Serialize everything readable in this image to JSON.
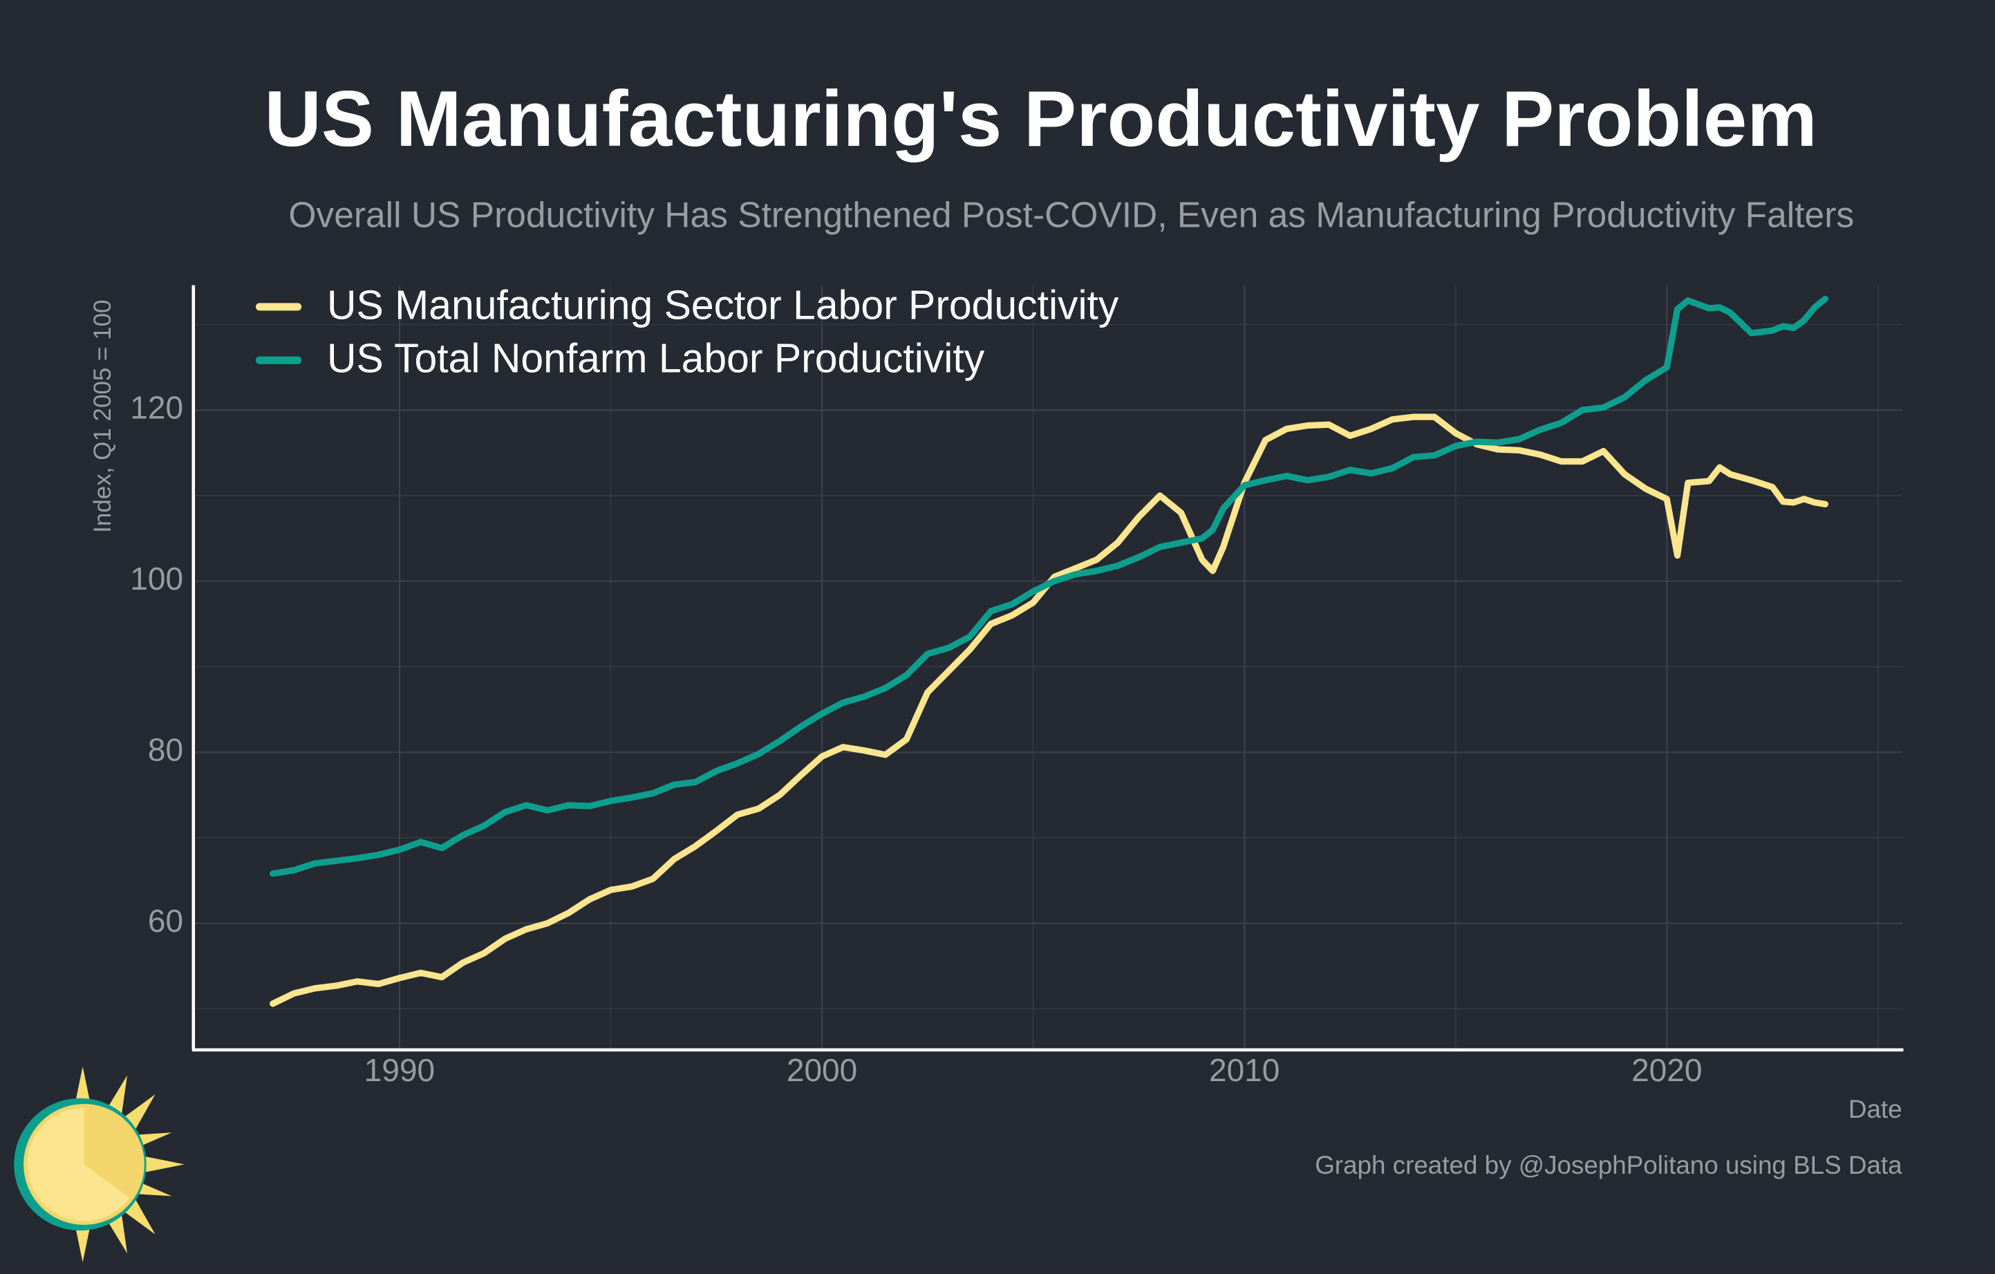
{
  "chart_data": {
    "type": "line",
    "title": "US Manufacturing's Productivity Problem",
    "subtitle": "Overall US Productivity Has Strengthened Post-COVID, Even as Manufacturing Productivity Falters",
    "y_label": "Index, Q1 2005 = 100",
    "x_label": "Date",
    "caption": "Graph created by @JosephPolitano using BLS Data",
    "x": [
      1987,
      1987.5,
      1988,
      1988.5,
      1989,
      1989.5,
      1990,
      1990.5,
      1991,
      1991.5,
      1992,
      1992.5,
      1993,
      1993.5,
      1994,
      1994.5,
      1995,
      1995.5,
      1996,
      1996.5,
      1997,
      1997.5,
      1998,
      1998.5,
      1999,
      1999.5,
      2000,
      2000.5,
      2001,
      2001.5,
      2002,
      2002.5,
      2003,
      2003.5,
      2004,
      2004.5,
      2005,
      2005.5,
      2006,
      2006.5,
      2007,
      2007.5,
      2008,
      2008.5,
      2009,
      2009.25,
      2009.5,
      2010,
      2010.5,
      2011,
      2011.5,
      2012,
      2012.5,
      2013,
      2013.5,
      2014,
      2014.5,
      2015,
      2015.5,
      2016,
      2016.5,
      2017,
      2017.5,
      2018,
      2018.5,
      2019,
      2019.5,
      2020,
      2020.25,
      2020.5,
      2021,
      2021.25,
      2021.5,
      2022,
      2022.5,
      2022.75,
      2023,
      2023.25,
      2023.5,
      2023.75
    ],
    "series": [
      {
        "name": "US Manufacturing Sector Labor Productivity",
        "color": "#fbe58f",
        "values": [
          50.6,
          51.8,
          52.4,
          52.7,
          53.2,
          52.9,
          53.6,
          54.2,
          53.7,
          55.4,
          56.5,
          58.2,
          59.3,
          60.0,
          61.2,
          62.8,
          63.9,
          64.3,
          65.2,
          67.5,
          69.0,
          70.8,
          72.7,
          73.4,
          75.0,
          77.3,
          79.5,
          80.6,
          80.2,
          79.7,
          81.5,
          87.0,
          89.5,
          92.0,
          95.0,
          96.0,
          97.5,
          100.5,
          101.5,
          102.5,
          104.5,
          107.5,
          110.0,
          108.0,
          102.5,
          101.2,
          104.0,
          111.5,
          116.5,
          117.8,
          118.2,
          118.3,
          117.0,
          117.8,
          118.9,
          119.2,
          119.2,
          117.3,
          116.0,
          115.4,
          115.3,
          114.8,
          114.0,
          114.0,
          115.2,
          112.5,
          110.8,
          109.6,
          103.0,
          111.5,
          111.7,
          113.3,
          112.5,
          111.8,
          111.0,
          109.3,
          109.2,
          109.6,
          109.2,
          109.0
        ]
      },
      {
        "name": "US Total Nonfarm Labor Productivity",
        "color": "#0e9e8e",
        "values": [
          65.8,
          66.2,
          67.0,
          67.3,
          67.6,
          68.0,
          68.6,
          69.5,
          68.8,
          70.3,
          71.4,
          73.0,
          73.8,
          73.2,
          73.8,
          73.7,
          74.3,
          74.7,
          75.2,
          76.2,
          76.5,
          77.8,
          78.7,
          79.8,
          81.3,
          83.0,
          84.5,
          85.8,
          86.5,
          87.5,
          89.0,
          91.5,
          92.2,
          93.5,
          96.5,
          97.3,
          98.8,
          100.0,
          100.8,
          101.2,
          101.8,
          102.8,
          104.0,
          104.5,
          105.0,
          106.0,
          108.5,
          111.2,
          111.8,
          112.3,
          111.8,
          112.2,
          113.0,
          112.6,
          113.2,
          114.5,
          114.7,
          115.8,
          116.3,
          116.2,
          116.6,
          117.7,
          118.5,
          120.0,
          120.3,
          121.5,
          123.5,
          125.0,
          131.8,
          132.8,
          131.9,
          132.0,
          131.4,
          129.0,
          129.3,
          129.8,
          129.6,
          130.5,
          132.0,
          133.0
        ]
      }
    ],
    "xlim": [
      1985.12,
      2025.57
    ],
    "ylim": [
      45.2,
      134.6
    ],
    "xticks": [
      1990,
      2000,
      2010,
      2020
    ],
    "yticks": [
      60,
      80,
      100,
      120
    ],
    "x_minor_grid": [
      1995,
      2005,
      2015,
      2025
    ],
    "y_minor_grid": [
      50,
      70,
      90,
      110,
      130
    ],
    "grid": true
  }
}
